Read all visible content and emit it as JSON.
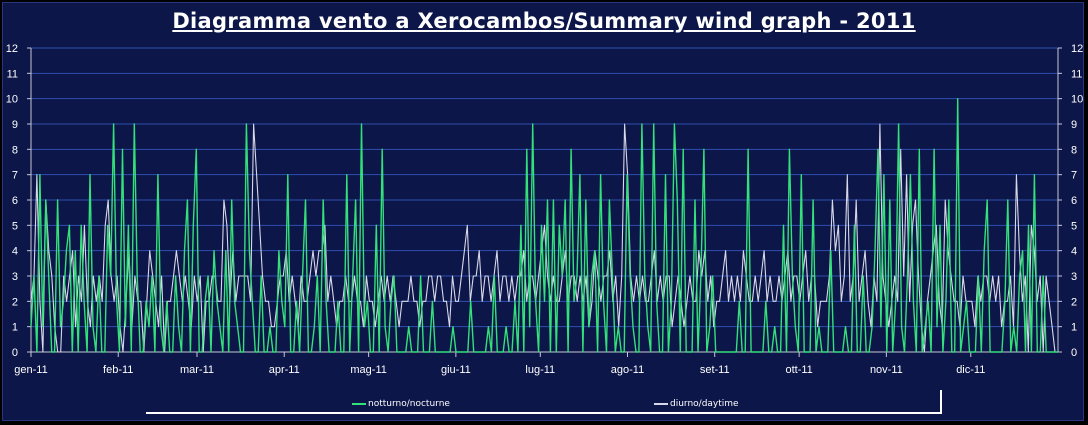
{
  "chart_data": {
    "type": "line",
    "title": "Diagramma vento a Xerocambos/Summary wind graph - 2011",
    "ylim": [
      0,
      12
    ],
    "y_ticks": [
      "0",
      "1",
      "2",
      "3",
      "4",
      "5",
      "6",
      "7",
      "8",
      "9",
      "10",
      "11",
      "12"
    ],
    "x_tick_labels": [
      "gen-11",
      "feb-11",
      "mar-11",
      "apr-11",
      "mag-11",
      "giu-11",
      "lug-11",
      "ago-11",
      "set-11",
      "ott-11",
      "nov-11",
      "dic-11"
    ],
    "x_tick_days": [
      0,
      31,
      59,
      90,
      120,
      151,
      181,
      212,
      243,
      273,
      304,
      334
    ],
    "days_total": 365,
    "grid": true,
    "legend_position": "bottom",
    "series": [
      {
        "name": "notturno/nocturne",
        "color": "#33e07a",
        "values": [
          1,
          3,
          0,
          7,
          1,
          6,
          3,
          0,
          0,
          6,
          1,
          2,
          4,
          5,
          0,
          4,
          0,
          5,
          2,
          0,
          7,
          1,
          0,
          3,
          0,
          0,
          5,
          3,
          9,
          2,
          0,
          8,
          1,
          5,
          0,
          9,
          3,
          0,
          0,
          2,
          1,
          3,
          0,
          7,
          1,
          0,
          2,
          0,
          0,
          3,
          1,
          0,
          4,
          6,
          0,
          5,
          8,
          0,
          0,
          2,
          3,
          0,
          4,
          2,
          1,
          0,
          4,
          0,
          6,
          2,
          1,
          0,
          0,
          9,
          4,
          2,
          0,
          0,
          3,
          0,
          0,
          1,
          0,
          0,
          4,
          2,
          1,
          7,
          0,
          0,
          2,
          0,
          3,
          6,
          0,
          0,
          1,
          3,
          0,
          6,
          2,
          0,
          0,
          0,
          2,
          0,
          0,
          7,
          0,
          3,
          6,
          0,
          9,
          1,
          2,
          0,
          0,
          5,
          0,
          8,
          1,
          0,
          2,
          3,
          0,
          0,
          0,
          0,
          1,
          0,
          0,
          0,
          3,
          0,
          0,
          0,
          2,
          0,
          0,
          0,
          0,
          0,
          0,
          1,
          0,
          0,
          0,
          0,
          0,
          2,
          0,
          0,
          0,
          0,
          0,
          1,
          0,
          3,
          0,
          0,
          0,
          1,
          0,
          0,
          2,
          0,
          5,
          0,
          8,
          1,
          9,
          2,
          0,
          5,
          2,
          6,
          0,
          6,
          0,
          5,
          3,
          6,
          0,
          8,
          2,
          3,
          7,
          0,
          6,
          1,
          3,
          4,
          0,
          7,
          2,
          0,
          6,
          3,
          0,
          1,
          0,
          0,
          7,
          3,
          1,
          0,
          0,
          9,
          3,
          1,
          0,
          9,
          2,
          0,
          0,
          7,
          0,
          2,
          9,
          6,
          0,
          8,
          0,
          0,
          0,
          6,
          0,
          3,
          8,
          0,
          1,
          3,
          0,
          0,
          0,
          0,
          0,
          0,
          0,
          0,
          2,
          0,
          0,
          8,
          0,
          0,
          0,
          0,
          0,
          2,
          0,
          0,
          1,
          0,
          0,
          5,
          0,
          8,
          3,
          1,
          0,
          7,
          0,
          0,
          0,
          6,
          0,
          1,
          0,
          0,
          0,
          4,
          0,
          0,
          0,
          0,
          1,
          0,
          0,
          5,
          0,
          0,
          3,
          0,
          0,
          1,
          4,
          8,
          1,
          7,
          0,
          6,
          0,
          2,
          9,
          1,
          0,
          3,
          7,
          2,
          0,
          8,
          0,
          1,
          2,
          0,
          8,
          1,
          5,
          0,
          2,
          6,
          0,
          0,
          10,
          0,
          1,
          2,
          0,
          0,
          0,
          3,
          0,
          4,
          6,
          0,
          0,
          0,
          0,
          0,
          2,
          6,
          0,
          1,
          0,
          3,
          4,
          0,
          5,
          0,
          7,
          0,
          0,
          3,
          0,
          0,
          0,
          0,
          0
        ],
        "estimated": true
      },
      {
        "name": "diurno/daytime",
        "color": "#d8d8e8",
        "values": [
          2,
          3,
          7,
          2,
          0,
          6,
          4,
          3,
          1,
          0,
          0,
          3,
          2,
          3,
          4,
          1,
          3,
          2,
          5,
          2,
          1,
          3,
          2,
          3,
          2,
          5,
          6,
          3,
          2,
          3,
          1,
          0,
          2,
          4,
          1,
          3,
          2,
          2,
          0,
          2,
          4,
          3,
          2,
          1,
          3,
          0,
          2,
          2,
          3,
          4,
          3,
          2,
          3,
          2,
          1,
          3,
          2,
          3,
          0,
          2,
          2,
          3,
          3,
          2,
          2,
          6,
          5,
          2,
          4,
          2,
          3,
          3,
          3,
          3,
          2,
          9,
          7,
          5,
          3,
          2,
          2,
          1,
          1,
          2,
          3,
          3,
          4,
          2,
          3,
          2,
          1,
          3,
          2,
          2,
          3,
          4,
          3,
          4,
          4,
          5,
          2,
          3,
          2,
          1,
          2,
          2,
          3,
          2,
          2,
          3,
          2,
          2,
          1,
          3,
          2,
          2,
          1,
          2,
          3,
          2,
          3,
          2,
          3,
          2,
          1,
          2,
          2,
          2,
          3,
          2,
          2,
          1,
          2,
          2,
          3,
          3,
          2,
          3,
          3,
          2,
          2,
          1,
          3,
          2,
          2,
          3,
          4,
          5,
          2,
          3,
          3,
          4,
          2,
          3,
          3,
          2,
          3,
          4,
          2,
          3,
          3,
          2,
          3,
          2,
          3,
          3,
          4,
          2,
          3,
          3,
          2,
          3,
          4,
          5,
          3,
          2,
          3,
          2,
          2,
          3,
          4,
          2,
          3,
          3,
          2,
          3,
          2,
          3,
          1,
          2,
          4,
          3,
          2,
          3,
          3,
          4,
          2,
          3,
          1,
          3,
          9,
          7,
          3,
          2,
          3,
          2,
          3,
          2,
          2,
          3,
          4,
          2,
          3,
          2,
          3,
          3,
          1,
          2,
          3,
          2,
          1,
          2,
          3,
          2,
          2,
          4,
          3,
          4,
          2,
          3,
          1,
          2,
          2,
          3,
          4,
          2,
          3,
          2,
          3,
          2,
          4,
          3,
          2,
          2,
          3,
          2,
          3,
          4,
          2,
          3,
          2,
          2,
          3,
          2,
          3,
          4,
          2,
          3,
          3,
          2,
          3,
          4,
          2,
          3,
          3,
          1,
          2,
          2,
          2,
          3,
          6,
          4,
          5,
          2,
          3,
          7,
          2,
          3,
          6,
          2,
          3,
          4,
          2,
          1,
          3,
          2,
          9,
          3,
          2,
          1,
          2,
          3,
          2,
          8,
          3,
          7,
          2,
          5,
          6,
          3,
          1,
          0,
          2,
          3,
          4,
          5,
          2,
          1,
          6,
          4,
          3,
          2,
          2,
          1,
          3,
          2,
          2,
          2,
          1,
          3,
          2,
          3,
          3,
          2,
          3,
          2,
          3,
          1,
          2,
          2,
          3,
          1,
          7,
          4,
          2,
          3,
          0,
          5,
          4,
          2,
          3,
          0,
          3,
          2,
          1,
          0,
          0
        ],
        "estimated": true
      }
    ]
  }
}
